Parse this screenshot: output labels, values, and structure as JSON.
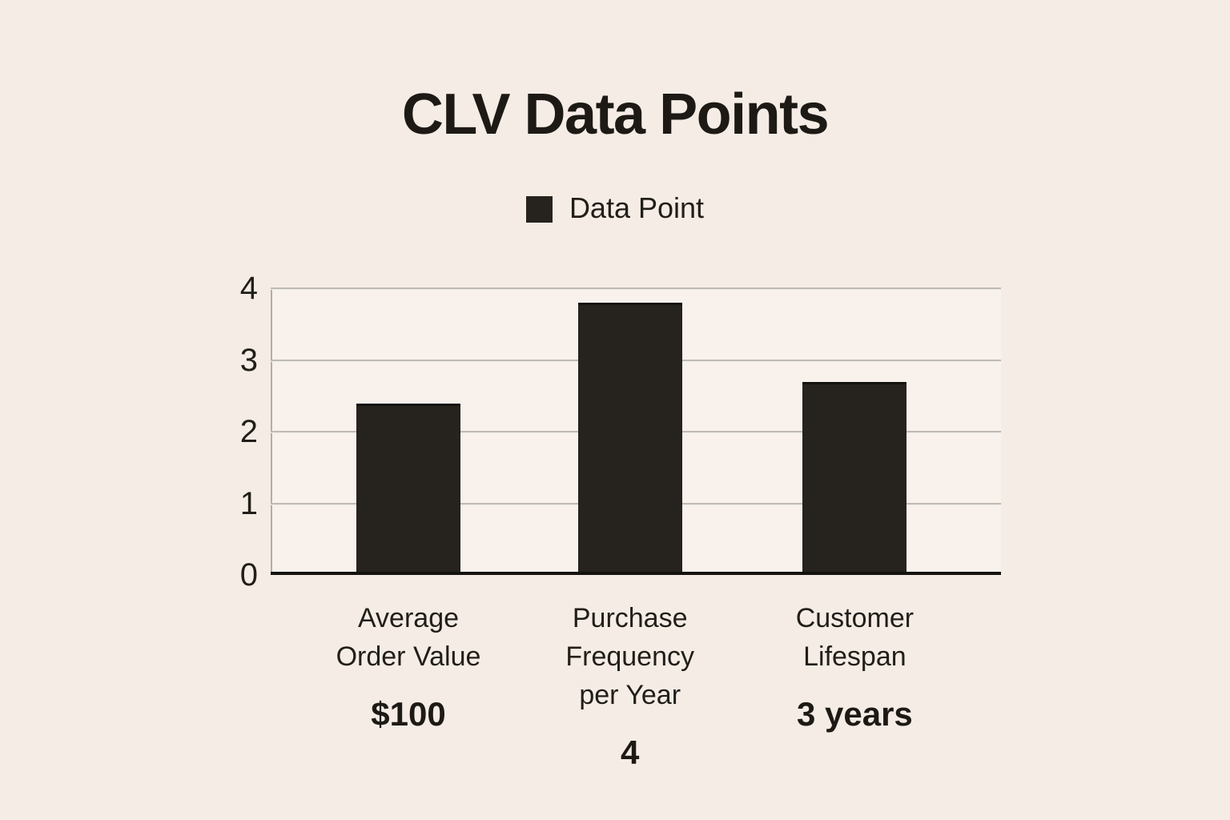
{
  "page": {
    "background": "#f5ece5",
    "text_color": "#211e19"
  },
  "chart_data": {
    "type": "bar",
    "title": "CLV Data Points",
    "legend": {
      "label": "Data Point",
      "position": "top-center",
      "swatch_color": "#26231e"
    },
    "categories": [
      "Average Order Value",
      "Purchase Frequency per Year",
      "Customer Lifespan"
    ],
    "category_label_lines": [
      [
        "Average",
        "Order Value"
      ],
      [
        "Purchase",
        "Frequency",
        "per Year"
      ],
      [
        "Customer",
        "Lifespan"
      ]
    ],
    "value_labels": [
      "$100",
      "4",
      "3 years"
    ],
    "values": [
      100,
      4,
      3
    ],
    "series": [
      {
        "name": "Data Point",
        "plotted_heights_axis_units": [
          2.35,
          3.75,
          2.65
        ]
      }
    ],
    "yticks": [
      0,
      1,
      2,
      3,
      4
    ],
    "ylim": [
      0,
      4
    ],
    "grid": true,
    "xlabel": "",
    "ylabel": "",
    "colors": {
      "bar": "#26231e",
      "text": "#211e19",
      "title_text": "#1d1a16",
      "gridline": "#c0bbb2",
      "axis": "#15130e",
      "background": "#f5ece5"
    }
  }
}
